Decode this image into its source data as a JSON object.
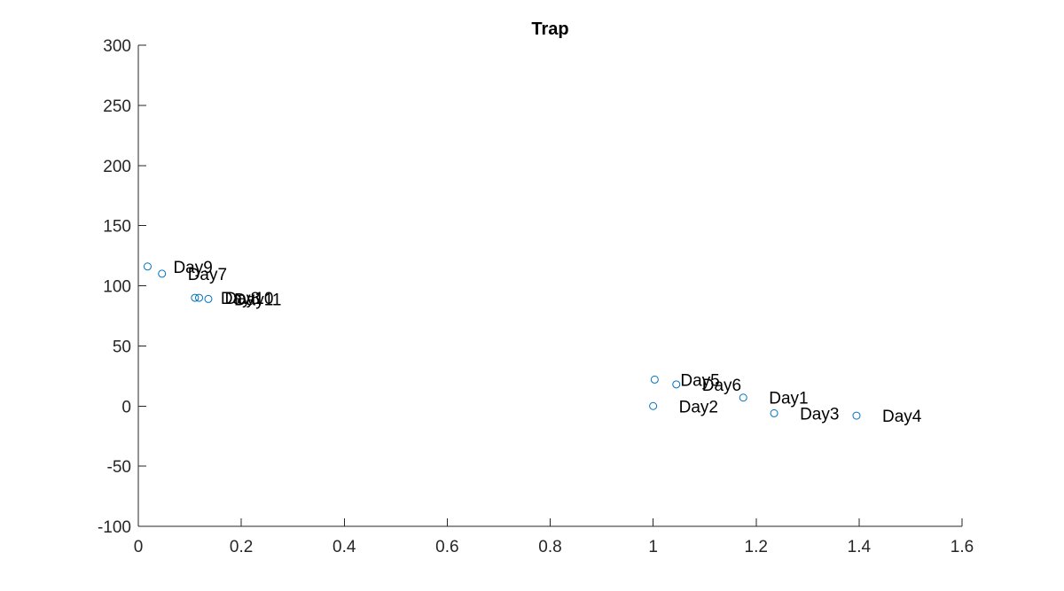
{
  "chart_data": {
    "type": "scatter",
    "title": "Trap",
    "xlabel": "",
    "ylabel": "",
    "xlim": [
      0,
      1.6
    ],
    "ylim": [
      -100,
      300
    ],
    "x_ticks": [
      0,
      0.2,
      0.4,
      0.6,
      0.8,
      1,
      1.2,
      1.4,
      1.6
    ],
    "x_tick_labels": [
      "0",
      "0.2",
      "0.4",
      "0.6",
      "0.8",
      "1",
      "1.2",
      "1.4",
      "1.6"
    ],
    "y_ticks": [
      -100,
      -50,
      0,
      50,
      100,
      150,
      200,
      250,
      300
    ],
    "y_tick_labels": [
      "-100",
      "-50",
      "0",
      "50",
      "100",
      "150",
      "200",
      "250",
      "300"
    ],
    "grid": false,
    "marker": "circle",
    "marker_color": "#0072BD",
    "points": [
      {
        "label": "Day1",
        "x": 1.175,
        "y": 7
      },
      {
        "label": "Day2",
        "x": 1.0,
        "y": 0
      },
      {
        "label": "Day3",
        "x": 1.235,
        "y": -6
      },
      {
        "label": "Day4",
        "x": 1.395,
        "y": -8
      },
      {
        "label": "Day5",
        "x": 1.003,
        "y": 22
      },
      {
        "label": "Day6",
        "x": 1.045,
        "y": 18
      },
      {
        "label": "Day7",
        "x": 0.046,
        "y": 110
      },
      {
        "label": "Day8",
        "x": 0.11,
        "y": 90
      },
      {
        "label": "Day9",
        "x": 0.018,
        "y": 116
      },
      {
        "label": "Day10",
        "x": 0.118,
        "y": 90
      },
      {
        "label": "Day11",
        "x": 0.136,
        "y": 89
      }
    ]
  }
}
